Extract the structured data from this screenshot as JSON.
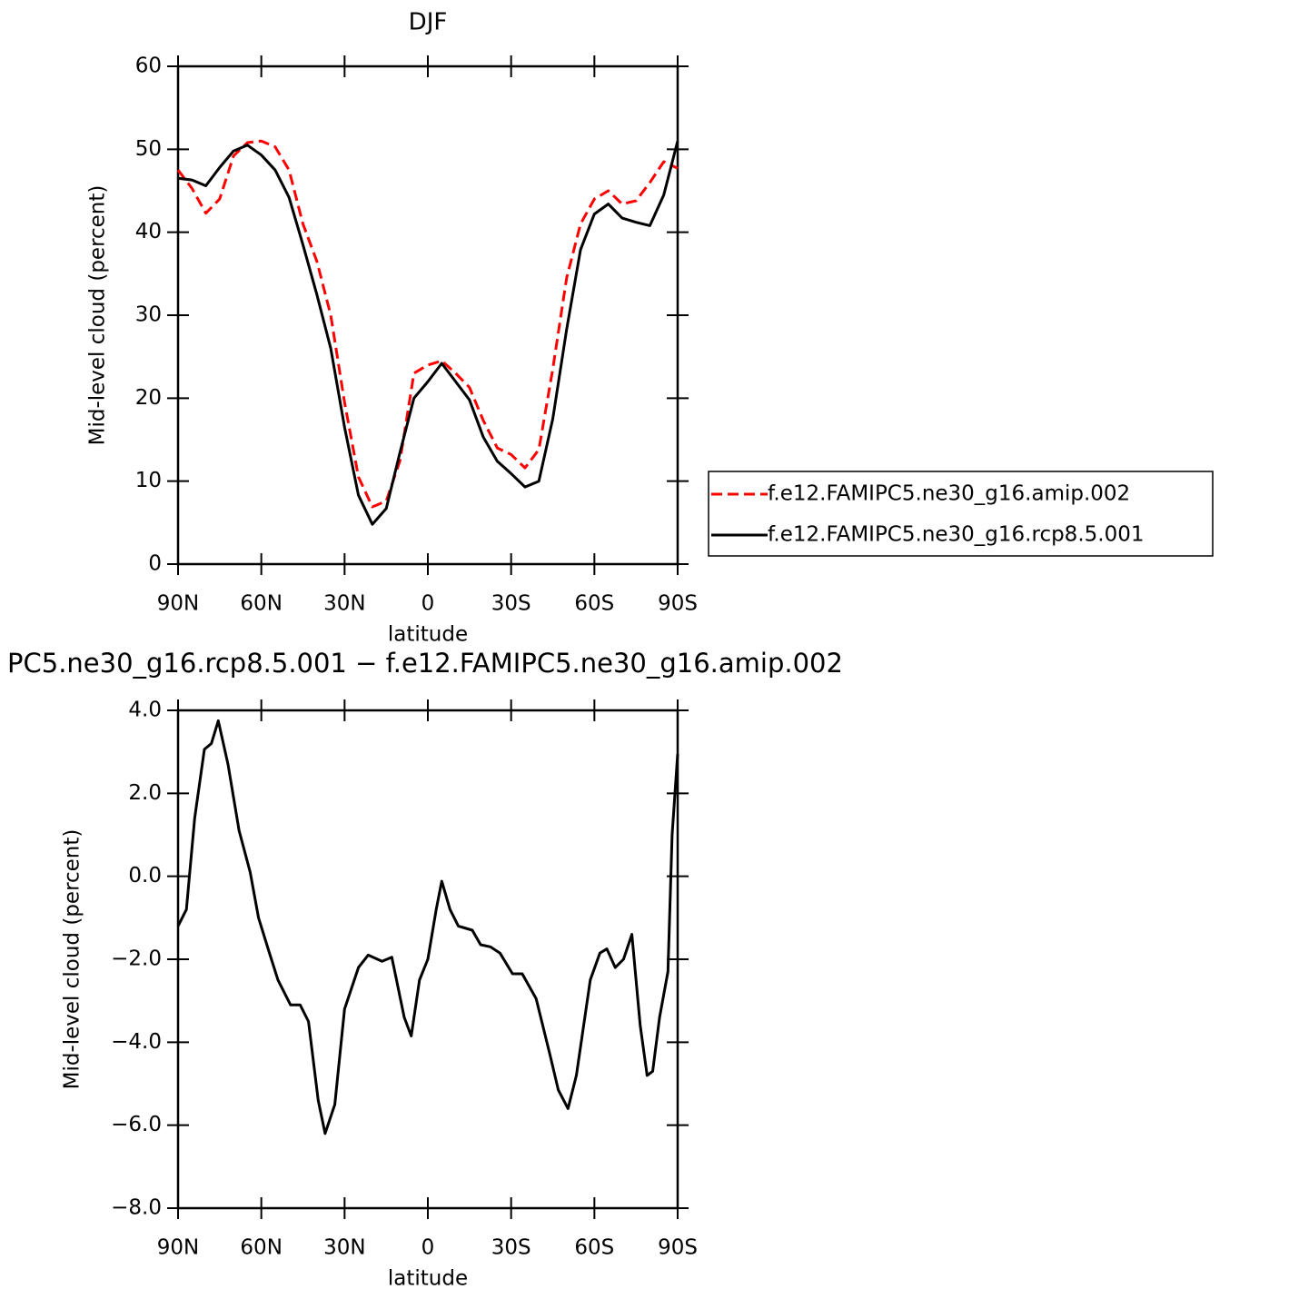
{
  "chart_data": [
    {
      "type": "line",
      "title": "DJF",
      "xlabel": "latitude",
      "ylabel": "Mid-level cloud (percent)",
      "x": [
        90,
        85,
        80,
        75,
        70,
        65,
        60,
        55,
        50,
        45,
        40,
        35,
        30,
        25,
        20,
        15,
        10,
        5,
        0,
        -5,
        -10,
        -15,
        -20,
        -25,
        -30,
        -35,
        -40,
        -45,
        -50,
        -55,
        -60,
        -65,
        -70,
        -75,
        -80,
        -85,
        -90
      ],
      "series": [
        {
          "name": "f.e12.FAMIPC5.ne30_g16.amip.002",
          "color": "#ff0000",
          "linestyle": "dashed",
          "values": [
            47.5,
            45.3,
            42.3,
            44,
            49.2,
            50.8,
            51,
            50.3,
            47.5,
            41,
            36.5,
            30,
            19.5,
            10.5,
            6.9,
            7.6,
            12.5,
            23,
            24,
            24.5,
            23,
            21.3,
            17.3,
            14,
            13.2,
            11.6,
            13.8,
            23.5,
            34.5,
            41,
            44,
            45,
            43.4,
            43.8,
            46,
            48.5,
            47.7
          ]
        },
        {
          "name": "f.e12.FAMIPC5.ne30_g16.rcp8.5.001",
          "color": "#000000",
          "linestyle": "solid",
          "values": [
            46.5,
            46.3,
            45.6,
            47.8,
            49.8,
            50.5,
            49.3,
            47.5,
            44.2,
            38.5,
            32.5,
            26,
            16.5,
            8.3,
            4.8,
            6.7,
            13.5,
            20,
            22,
            24.2,
            22,
            19.8,
            15.3,
            12.4,
            10.9,
            9.3,
            10,
            17.5,
            28.3,
            37.9,
            42.2,
            43.4,
            41.7,
            41.2,
            40.8,
            44.5,
            51
          ]
        }
      ],
      "xlim": [
        90,
        -90
      ],
      "xticks": [
        {
          "value": 90,
          "label": "90N"
        },
        {
          "value": 60,
          "label": "60N"
        },
        {
          "value": 30,
          "label": "30N"
        },
        0,
        {
          "value": -30,
          "label": "30S"
        },
        {
          "value": -60,
          "label": "60S"
        },
        {
          "value": -90,
          "label": "90S"
        }
      ],
      "ylim": [
        0,
        60
      ],
      "yticks": [
        0,
        10,
        20,
        30,
        40,
        50,
        60
      ],
      "legend": "right"
    },
    {
      "type": "line",
      "title": "PC5.ne30_g16.rcp8.5.001 − f.e12.FAMIPC5.ne30_g16.amip.002",
      "xlabel": "latitude",
      "ylabel": "Mid-level cloud (percent)",
      "x": [
        90,
        87,
        84,
        80.5,
        78,
        75.5,
        72,
        68,
        64,
        61,
        57.5,
        54,
        49.5,
        46,
        43,
        39.5,
        37,
        33.5,
        30,
        25,
        21.5,
        16.5,
        13,
        8.5,
        6,
        3,
        0,
        -3,
        -5,
        -8,
        -11,
        -16,
        -19,
        -22.5,
        -26,
        -30.5,
        -34,
        -39,
        -44,
        -47,
        -50.5,
        -53.5,
        -58.5,
        -62,
        -64.5,
        -67.5,
        -70.5,
        -73.5,
        -76.5,
        -79,
        -81,
        -83.5,
        -86.5,
        -88,
        -90
      ],
      "series": [
        {
          "color": "#000000",
          "linestyle": "solid",
          "values": [
            -1.2,
            -0.8,
            1.4,
            3.06,
            3.2,
            3.75,
            2.7,
            1.1,
            0.1,
            -1,
            -1.76,
            -2.5,
            -3.1,
            -3.1,
            -3.5,
            -5.4,
            -6.2,
            -5.5,
            -3.2,
            -2.2,
            -1.9,
            -2.05,
            -1.95,
            -3.4,
            -3.85,
            -2.5,
            -2,
            -0.8,
            -0.12,
            -0.8,
            -1.2,
            -1.3,
            -1.65,
            -1.7,
            -1.85,
            -2.35,
            -2.35,
            -2.95,
            -4.3,
            -5.15,
            -5.6,
            -4.8,
            -2.5,
            -1.85,
            -1.75,
            -2.2,
            -2,
            -1.4,
            -3.6,
            -4.8,
            -4.7,
            -3.4,
            -2.3,
            1,
            2.95
          ]
        }
      ],
      "xlim": [
        90,
        -90
      ],
      "xticks": [
        {
          "value": 90,
          "label": "90N"
        },
        {
          "value": 60,
          "label": "60N"
        },
        {
          "value": 30,
          "label": "30N"
        },
        0,
        {
          "value": -30,
          "label": "30S"
        },
        {
          "value": -60,
          "label": "60S"
        },
        {
          "value": -90,
          "label": "90S"
        }
      ],
      "ylim": [
        -8,
        4
      ],
      "yticks": [
        {
          "value": -8,
          "label": "−8.0"
        },
        {
          "value": -6,
          "label": "−6.0"
        },
        {
          "value": -4,
          "label": "−4.0"
        },
        {
          "value": -2,
          "label": "−2.0"
        },
        {
          "value": 0,
          "label": "0.0"
        },
        {
          "value": 2,
          "label": "2.0"
        },
        {
          "value": 4,
          "label": "4.0"
        }
      ]
    }
  ]
}
